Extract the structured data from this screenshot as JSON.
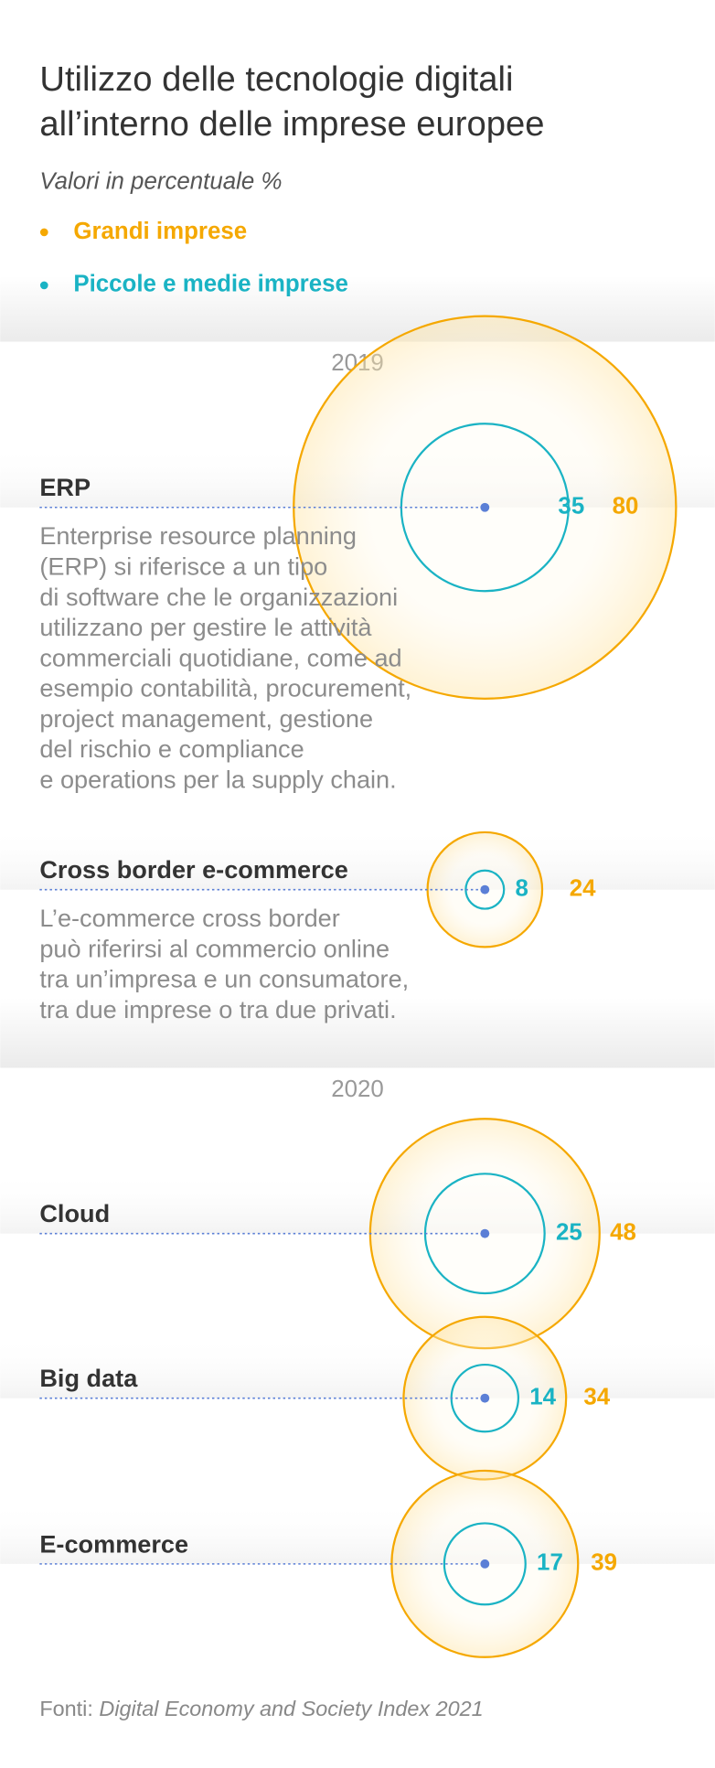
{
  "chart_data": {
    "type": "bubble",
    "title": [
      "Utilizzo delle tecnologie digitali",
      "all’interno delle imprese europee"
    ],
    "subtitle": "Valori in percentuale %",
    "categories": [
      "ERP",
      "Cross border e-commerce",
      "Cloud",
      "Big data",
      "E-commerce"
    ],
    "years": [
      "2019",
      "2019",
      "2020",
      "2020",
      "2020"
    ],
    "descriptions": [
      [
        "Enterprise resource planning",
        "(ERP) si riferisce a un tipo",
        "di software che le organizzazioni",
        "utilizzano per gestire le attività",
        "commerciali quotidiane, come ad",
        "esempio contabilità, procurement,",
        "project management, gestione",
        "del rischio e compliance",
        "e operations per la supply chain."
      ],
      [
        "L’e-commerce cross border",
        "può riferirsi al commercio online",
        "tra un’impresa e un consumatore,",
        "tra due imprese o tra due privati."
      ],
      null,
      null,
      null
    ],
    "series": [
      {
        "name": "Grandi imprese",
        "color": "#f5a800",
        "values": [
          80,
          24,
          48,
          34,
          39
        ]
      },
      {
        "name": "Piccole e medie imprese",
        "color": "#1ab3c4",
        "values": [
          35,
          8,
          25,
          14,
          17
        ]
      }
    ],
    "source_label": "Fonti:",
    "source": "Digital Economy and Society Index 2021"
  }
}
